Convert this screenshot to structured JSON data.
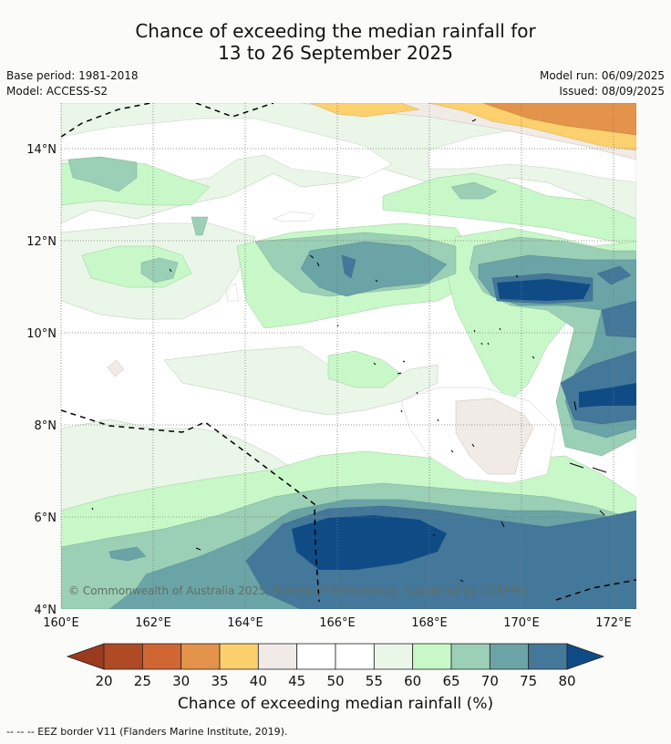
{
  "header": {
    "title_line1": "Chance of exceeding the median rainfall for",
    "title_line2": "13 to 26 September 2025",
    "base_period": "Base period: 1981-2018",
    "model": "Model: ACCESS-S2",
    "model_run": "Model run: 06/09/2025",
    "issued": "Issued: 08/09/2025"
  },
  "map": {
    "lat_labels": [
      "14°N",
      "12°N",
      "10°N",
      "8°N",
      "6°N",
      "4°N"
    ],
    "lon_labels": [
      "160°E",
      "162°E",
      "164°E",
      "166°E",
      "168°E",
      "170°E",
      "172°E"
    ],
    "copyright": "© Commonwealth of Australia 2025, Bureau of Meteorology, supported by COSPPac"
  },
  "colorbar": {
    "ticks": [
      "20",
      "25",
      "30",
      "35",
      "40",
      "45",
      "50",
      "55",
      "60",
      "65",
      "70",
      "75",
      "80"
    ],
    "colors": [
      "#b04a25",
      "#cf6634",
      "#e4934a",
      "#fdd06e",
      "#f1ebe7",
      "#ffffff",
      "#ffffff",
      "#eaf6e8",
      "#c8f8c8",
      "#9bcfb6",
      "#6aa4a6",
      "#44789a"
    ],
    "low_color": "#9a3a1e",
    "high_color": "#0f4c86",
    "label": "Chance of exceeding median rainfall (%)"
  },
  "footer": {
    "legend_text": "--  --  -- EEZ border V11 (Flanders Marine Institute, 2019)."
  }
}
